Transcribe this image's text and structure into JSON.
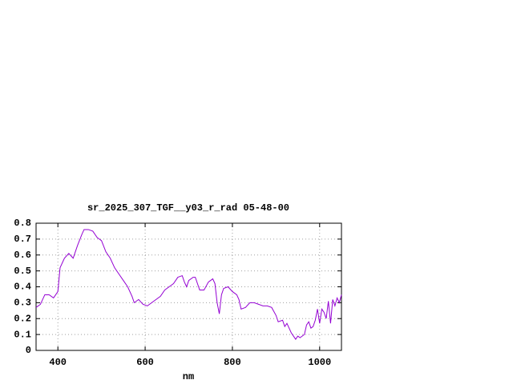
{
  "chart_data": {
    "type": "line",
    "title": "sr_2025_307_TGF__y03_r_rad 05-48-00",
    "x_label": "nm",
    "x": [
      350,
      360,
      370,
      380,
      390,
      400,
      405,
      415,
      425,
      435,
      445,
      455,
      460,
      470,
      480,
      490,
      500,
      510,
      520,
      530,
      540,
      550,
      560,
      570,
      575,
      585,
      595,
      605,
      615,
      625,
      635,
      645,
      655,
      665,
      675,
      685,
      690,
      695,
      700,
      710,
      715,
      725,
      735,
      745,
      755,
      760,
      765,
      770,
      775,
      780,
      790,
      800,
      810,
      815,
      820,
      830,
      840,
      850,
      860,
      870,
      880,
      890,
      900,
      905,
      915,
      920,
      925,
      935,
      945,
      950,
      955,
      965,
      970,
      975,
      980,
      985,
      990,
      995,
      1000,
      1005,
      1010,
      1015,
      1020,
      1025,
      1030,
      1035,
      1040,
      1045,
      1050
    ],
    "series": [
      {
        "color": "#9400d3",
        "values": [
          0.27,
          0.29,
          0.35,
          0.35,
          0.33,
          0.37,
          0.52,
          0.58,
          0.61,
          0.58,
          0.66,
          0.73,
          0.76,
          0.76,
          0.75,
          0.71,
          0.69,
          0.62,
          0.58,
          0.52,
          0.48,
          0.44,
          0.4,
          0.34,
          0.3,
          0.32,
          0.29,
          0.28,
          0.3,
          0.32,
          0.34,
          0.38,
          0.4,
          0.42,
          0.46,
          0.47,
          0.43,
          0.4,
          0.44,
          0.46,
          0.46,
          0.38,
          0.38,
          0.43,
          0.45,
          0.42,
          0.3,
          0.23,
          0.35,
          0.39,
          0.4,
          0.37,
          0.35,
          0.32,
          0.26,
          0.27,
          0.3,
          0.3,
          0.29,
          0.28,
          0.28,
          0.27,
          0.22,
          0.18,
          0.19,
          0.15,
          0.17,
          0.11,
          0.07,
          0.09,
          0.08,
          0.1,
          0.16,
          0.18,
          0.14,
          0.15,
          0.19,
          0.26,
          0.17,
          0.26,
          0.24,
          0.2,
          0.31,
          0.17,
          0.32,
          0.28,
          0.33,
          0.3,
          0.35
        ]
      }
    ],
    "xlim": [
      350,
      1050
    ],
    "ylim": [
      0,
      0.8
    ],
    "xticks": [
      400,
      600,
      800,
      1000
    ],
    "yticks": [
      0,
      0.1,
      0.2,
      0.3,
      0.4,
      0.5,
      0.6,
      0.7,
      0.8
    ],
    "grid": true
  }
}
